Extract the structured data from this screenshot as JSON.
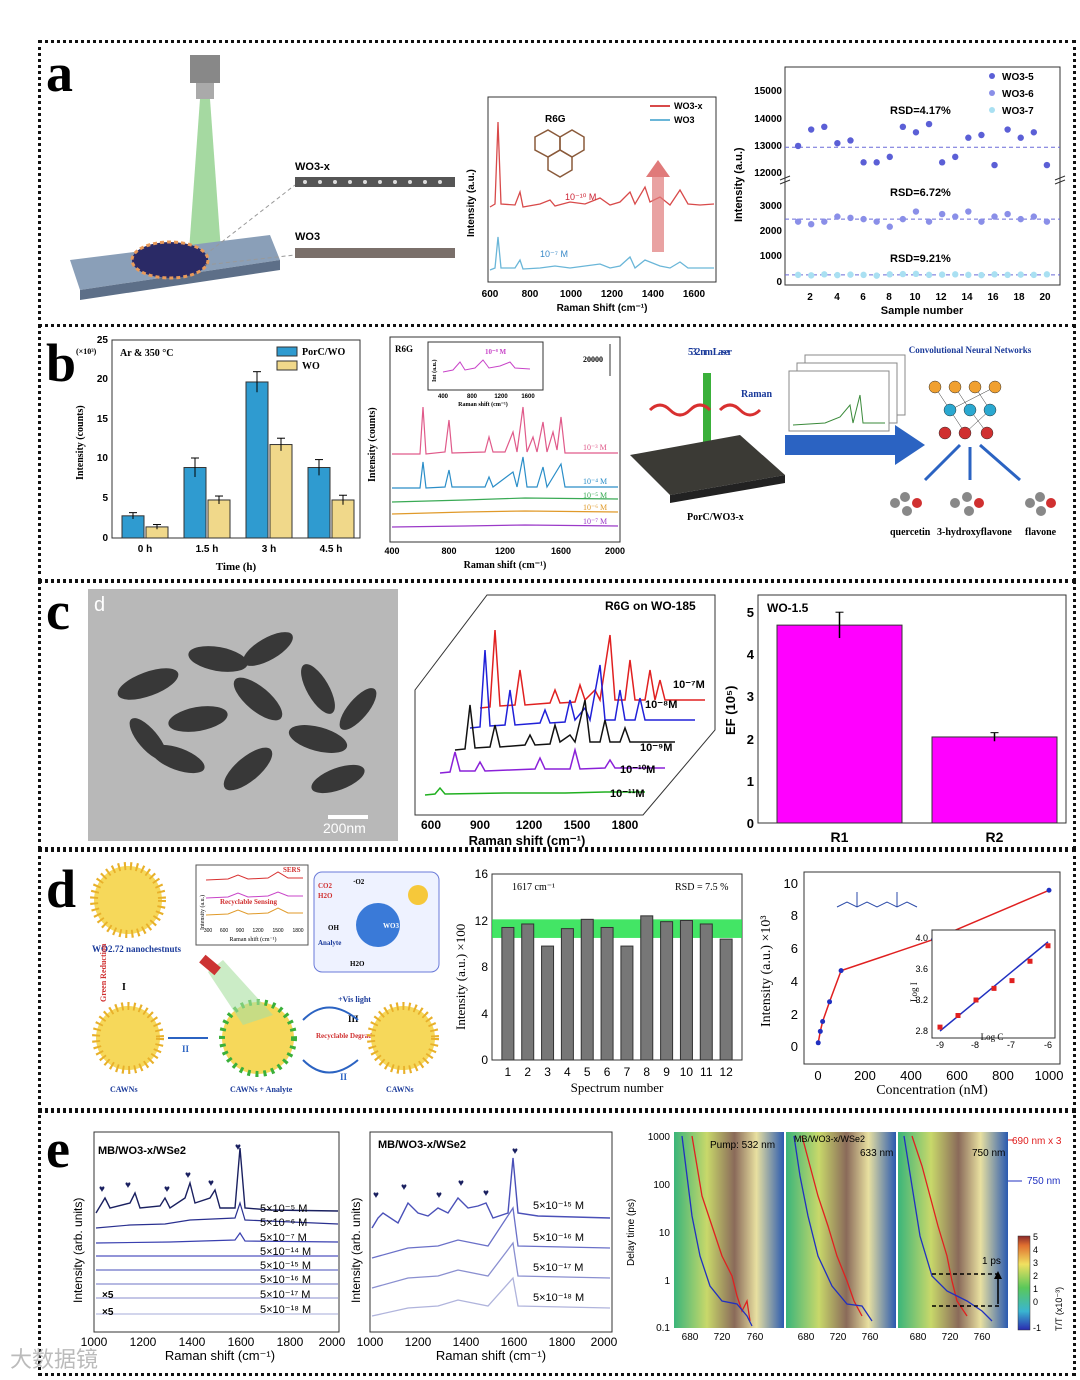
{
  "labels": {
    "a": "a",
    "b": "b",
    "c": "c",
    "d": "d",
    "e": "e"
  },
  "watermark": "大数据镜",
  "panel_a": {
    "wo3x_label": "WO3-x",
    "wo3_label": "WO3",
    "raman": {
      "molecule": "R6G",
      "legend": [
        "WO3-x",
        "WO3"
      ],
      "conc_top": "10⁻¹⁰ M",
      "conc_bottom": "10⁻⁷ M",
      "ylabel": "Intensity (a.u.)",
      "xlabel": "Raman Shift (cm⁻¹)",
      "xticks": [
        "600",
        "800",
        "1000",
        "1200",
        "1400",
        "1600"
      ]
    },
    "rsd": {
      "legend": [
        "WO3-5",
        "WO3-6",
        "WO3-7"
      ],
      "colors": [
        "#5b5fd6",
        "#8a8fe8",
        "#a9e0f2"
      ],
      "rsd_labels": [
        "RSD=4.17%",
        "RSD=6.72%",
        "RSD=9.21%"
      ],
      "ylabel": "Intensity (a.u.)",
      "xlabel": "Sample number",
      "xticks": [
        "2",
        "4",
        "6",
        "8",
        "10",
        "12",
        "14",
        "16",
        "18",
        "20"
      ],
      "yticks_top": [
        "12000",
        "13000",
        "14000",
        "15000"
      ],
      "yticks_bottom": [
        "0",
        "1000",
        "2000",
        "3000"
      ]
    }
  },
  "panel_b": {
    "bar": {
      "title": "Ar & 350 °C",
      "ylabel": "Intensity (counts)",
      "scale": "(×10³)",
      "xlabel": "Time (h)",
      "legend": [
        "PorC/WO",
        "WO"
      ],
      "yticks": [
        "0",
        "5",
        "10",
        "15",
        "20",
        "25"
      ]
    },
    "raman": {
      "molecule": "R6G",
      "scale": "20000",
      "inset_label": "10⁻⁸ M",
      "inset_ylabel": "Int (a.u.)",
      "inset_xlabel": "Raman shift (cm⁻¹)",
      "inset_xticks": [
        "400",
        "800",
        "1200",
        "1600"
      ],
      "concs": [
        "10⁻³ M",
        "10⁻⁴ M",
        "10⁻⁵ M",
        "10⁻⁶ M",
        "10⁻⁷ M"
      ],
      "ylabel": "Intensity (counts)",
      "xlabel": "Raman shift (cm⁻¹)",
      "xticks": [
        "400",
        "800",
        "1200",
        "1600",
        "2000"
      ]
    },
    "schematic": {
      "laser": "532 nm Laser",
      "raman": "Raman",
      "substrate": "PorC/WO3-x",
      "cnn": "Convolutional Neural Networks",
      "molecules": [
        "quercetin",
        "3-hydroxyflavone",
        "flavone"
      ]
    }
  },
  "panel_c": {
    "tem_letter": "d",
    "scalebar": "200nm",
    "raman": {
      "title": "R6G on WO-185",
      "concs": [
        "10⁻⁷M",
        "10⁻⁸M",
        "10⁻⁹M",
        "10⁻¹⁰M",
        "10⁻¹¹M"
      ],
      "xlabel": "Raman shift (cm⁻¹)",
      "xticks": [
        "600",
        "900",
        "1200",
        "1500",
        "1800"
      ]
    },
    "ef_title": "WO-1.5",
    "ef_ylabel": "EF (10⁵)",
    "ef_yticks": [
      "0",
      "1",
      "2",
      "3",
      "4",
      "5"
    ]
  },
  "panel_d": {
    "schematic": {
      "nano": "WO2.72 nanochestnuts",
      "green": "Green Reduction",
      "cawns": "CAWNs",
      "cawns_analyte": "CAWNs + Analyte",
      "recycle_sense": "Recyclable Sensing",
      "recycle_deg": "Recyclable Degradation",
      "vis": "+Vis light",
      "sers": "SERS",
      "num_i": "I",
      "num_ii": "II",
      "num_iii": "III",
      "inset_xlabel": "Raman shift (cm⁻¹)",
      "inset_ylabel": "Intensity (a.u.)",
      "inset_xticks": [
        "300",
        "600",
        "900",
        "1200",
        "1500",
        "1800"
      ],
      "molecule_labels": [
        "CO2",
        "H2O",
        "·O2",
        "OH",
        "Analyte",
        "WO3"
      ]
    },
    "bars": {
      "peak": "1617 cm⁻¹",
      "rsd": "RSD = 7.5 %",
      "ylabel": "Intensity (a.u.) ×100",
      "xlabel": "Spectrum number",
      "yticks": [
        "0",
        "4",
        "8",
        "12",
        "16"
      ]
    },
    "curve": {
      "ylabel": "Intensity (a.u.) ×10³",
      "xlabel": "Concentration (nM)",
      "xticks": [
        "0",
        "200",
        "400",
        "600",
        "800",
        "1000"
      ],
      "yticks": [
        "0",
        "2",
        "4",
        "6",
        "8",
        "10"
      ],
      "inset_ylabel": "Log I",
      "inset_xlabel": "Log C",
      "inset_yticks": [
        "2.8",
        "3.2",
        "3.6",
        "4.0"
      ],
      "inset_xticks": [
        "-9",
        "-8",
        "-7",
        "-6"
      ]
    }
  },
  "panel_e": {
    "left": {
      "title": "MB/WO3-x/WSe2",
      "concs": [
        "5×10⁻⁵ M",
        "5×10⁻⁶ M",
        "5×10⁻⁷ M",
        "5×10⁻¹⁴ M",
        "5×10⁻¹⁵ M",
        "5×10⁻¹⁶ M",
        "5×10⁻¹⁷ M",
        "5×10⁻¹⁸ M"
      ],
      "x5": [
        "×5",
        "×5"
      ],
      "ylabel": "Intensity (arb. units)",
      "xlabel": "Raman shift (cm⁻¹)",
      "xticks": [
        "1000",
        "1200",
        "1400",
        "1600",
        "1800",
        "2000"
      ]
    },
    "mid": {
      "title": "MB/WO3-x/WSe2",
      "concs": [
        "5×10⁻¹⁵ M",
        "5×10⁻¹⁶ M",
        "5×10⁻¹⁷ M",
        "5×10⁻¹⁸ M"
      ],
      "ylabel": "Intensity (arb. units)",
      "xlabel": "Raman shift (cm⁻¹)",
      "xticks": [
        "1000",
        "1200",
        "1400",
        "1600",
        "1800",
        "2000"
      ]
    },
    "map": {
      "pump1": "Pump: 532 nm",
      "pump2": "633 nm",
      "pump3": "750 nm",
      "sample": "MB/WO3-x/WSe2",
      "ylabel": "Delay time (ps)",
      "yticks": [
        "1000",
        "100",
        "10",
        "1",
        "0.1"
      ],
      "xticks": [
        "680",
        "720",
        "760"
      ],
      "legend_red": "690 nm x 3",
      "legend_blue": "750 nm",
      "cbar_label": "T/T (x10⁻³)",
      "cbar_ticks": [
        "5",
        "4",
        "3",
        "2",
        "1",
        "0",
        "-1"
      ],
      "one_ps": "1 ps"
    }
  },
  "chart_data": [
    {
      "type": "scatter",
      "title": "",
      "xlabel": "Sample number",
      "ylabel": "Intensity (a.u.)",
      "xlim": [
        0,
        21
      ],
      "series": [
        {
          "name": "WO3-5",
          "x": [
            1,
            2,
            3,
            4,
            5,
            6,
            7,
            8,
            9,
            10,
            11,
            12,
            13,
            14,
            15,
            16,
            17,
            18,
            19,
            20
          ],
          "values": [
            13100,
            13700,
            13800,
            13200,
            13300,
            12500,
            12500,
            12700,
            13800,
            13600,
            13900,
            12500,
            12700,
            13400,
            13500,
            12400,
            13700,
            13400,
            13600,
            12400
          ]
        },
        {
          "name": "WO3-6",
          "x": [
            1,
            2,
            3,
            4,
            5,
            6,
            7,
            8,
            9,
            10,
            11,
            12,
            13,
            14,
            15,
            16,
            17,
            18,
            19,
            20
          ],
          "values": [
            2500,
            2400,
            2500,
            2700,
            2650,
            2600,
            2500,
            2300,
            2600,
            2900,
            2500,
            2800,
            2700,
            2900,
            2500,
            2700,
            2800,
            2600,
            2700,
            2500
          ]
        },
        {
          "name": "WO3-7",
          "x": [
            1,
            2,
            3,
            4,
            5,
            6,
            7,
            8,
            9,
            10,
            11,
            12,
            13,
            14,
            15,
            16,
            17,
            18,
            19,
            20
          ],
          "values": [
            400,
            380,
            420,
            390,
            410,
            400,
            370,
            420,
            430,
            440,
            400,
            410,
            420,
            400,
            390,
            420,
            400,
            410,
            400,
            420
          ]
        }
      ],
      "means": [
        13050,
        2600,
        400
      ]
    },
    {
      "type": "bar",
      "title": "Ar & 350 °C",
      "categories": [
        "0 h",
        "1.5 h",
        "3 h",
        "4.5 h"
      ],
      "series": [
        {
          "name": "PorC/WO",
          "values": [
            2.8,
            8.9,
            19.7,
            8.9
          ],
          "errors": [
            0.4,
            1.2,
            1.3,
            1.0
          ]
        },
        {
          "name": "WO",
          "values": [
            1.4,
            4.8,
            11.8,
            4.8
          ],
          "errors": [
            0.3,
            0.5,
            0.8,
            0.6
          ]
        }
      ],
      "xlabel": "Time (h)",
      "ylabel": "Intensity (counts) (×10³)",
      "ylim": [
        0,
        25
      ]
    },
    {
      "type": "bar",
      "title": "WO-1.5",
      "categories": [
        "R1",
        "R2"
      ],
      "values": [
        4.6,
        2.0
      ],
      "errors": [
        0.3,
        0.1
      ],
      "ylabel": "EF (10⁵)",
      "ylim": [
        0,
        5.3
      ]
    },
    {
      "type": "bar",
      "title": "1617 cm⁻¹",
      "categories": [
        "1",
        "2",
        "3",
        "4",
        "5",
        "6",
        "7",
        "8",
        "9",
        "10",
        "11",
        "12"
      ],
      "values": [
        11.4,
        11.7,
        9.8,
        11.3,
        12.1,
        11.4,
        9.8,
        12.4,
        11.9,
        12.0,
        11.7,
        10.4
      ],
      "band": [
        10.5,
        12.1
      ],
      "xlabel": "Spectrum number",
      "ylabel": "Intensity (a.u.) ×100",
      "ylim": [
        0,
        16
      ]
    },
    {
      "type": "line",
      "title": "",
      "series": [
        {
          "name": "calibration",
          "x": [
            1,
            10,
            20,
            50,
            100,
            500,
            1000
          ],
          "values": [
            0.5,
            1.2,
            1.8,
            3.0,
            4.9,
            6.8,
            9.8
          ]
        },
        {
          "name": "log fit",
          "x": [
            -9,
            -8.5,
            -8,
            -7.5,
            -7,
            -6.5,
            -6
          ],
          "values": [
            2.85,
            3.0,
            3.2,
            3.35,
            3.45,
            3.7,
            3.9
          ]
        }
      ],
      "xlabel": "Concentration (nM)",
      "ylabel": "Intensity (a.u.) ×10³",
      "xlim": [
        0,
        1050
      ],
      "ylim": [
        0,
        10
      ]
    }
  ]
}
